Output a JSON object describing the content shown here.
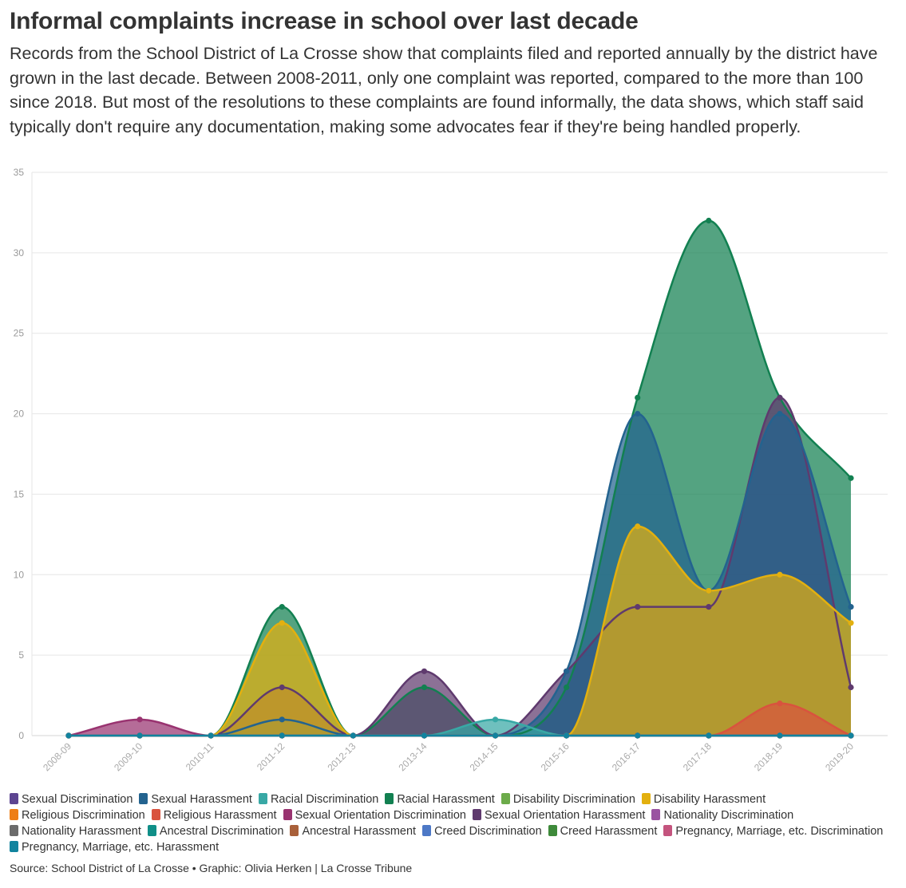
{
  "title": "Informal complaints increase in school over last decade",
  "subtitle": "Records from the School District of La Crosse show that complaints filed and reported annually by the district have grown in the last decade. Between 2008-2011, only one complaint was reported, compared to the more than 100 since 2018. But most of the resolutions to these complaints are found informally, the data shows, which staff said typically don't require any documentation, making some advocates fear if they're being handled properly.",
  "source": "Source: School District of La Crosse • Graphic: Olivia Herken | La Crosse Tribune",
  "chart_data": {
    "type": "area",
    "ylim": [
      0,
      35
    ],
    "yticks": [
      0,
      5,
      10,
      15,
      20,
      25,
      30,
      35
    ],
    "categories": [
      "2008-09",
      "2009-10",
      "2010-11",
      "2011-12",
      "2012-13",
      "2013-14",
      "2014-15",
      "2015-16",
      "2016-17",
      "2017-18",
      "2018-19",
      "2019-20"
    ],
    "legend_position": "bottom",
    "series": [
      {
        "name": "Sexual Discrimination",
        "color": "#5d4591",
        "values": [
          0,
          0,
          0,
          0,
          0,
          0,
          0,
          0,
          0,
          0,
          0,
          0
        ]
      },
      {
        "name": "Sexual Harassment",
        "color": "#23638f",
        "values": [
          0,
          0,
          0,
          1,
          0,
          0,
          0,
          4,
          20,
          9,
          20,
          8
        ]
      },
      {
        "name": "Racial Discrimination",
        "color": "#38a8a5",
        "values": [
          0,
          0,
          0,
          0,
          0,
          0,
          1,
          0,
          0,
          0,
          0,
          0
        ]
      },
      {
        "name": "Racial Harassment",
        "color": "#128051",
        "values": [
          0,
          0,
          0,
          8,
          0,
          3,
          0,
          3,
          21,
          32,
          21,
          16
        ]
      },
      {
        "name": "Disability Discrimination",
        "color": "#6cab4a",
        "values": [
          0,
          0,
          0,
          0,
          0,
          0,
          0,
          0,
          0,
          0,
          0,
          0
        ]
      },
      {
        "name": "Disability Harassment",
        "color": "#e3b00f",
        "values": [
          0,
          0,
          0,
          7,
          0,
          0,
          0,
          0,
          13,
          9,
          10,
          7
        ]
      },
      {
        "name": "Religious Discrimination",
        "color": "#ee7e15",
        "values": [
          0,
          0,
          0,
          0,
          0,
          0,
          0,
          0,
          0,
          0,
          0,
          0
        ]
      },
      {
        "name": "Religious Harassment",
        "color": "#d9533e",
        "values": [
          0,
          0,
          0,
          0,
          0,
          0,
          0,
          0,
          0,
          0,
          2,
          0
        ]
      },
      {
        "name": "Sexual Orientation Discrimination",
        "color": "#993370",
        "values": [
          0,
          1,
          0,
          0,
          0,
          0,
          0,
          0,
          0,
          0,
          0,
          0
        ]
      },
      {
        "name": "Sexual Orientation Harassment",
        "color": "#5f3a6e",
        "values": [
          0,
          0,
          0,
          3,
          0,
          4,
          0,
          4,
          8,
          8,
          21,
          3
        ]
      },
      {
        "name": "Nationality Discrimination",
        "color": "#9a53a1",
        "values": [
          0,
          0,
          0,
          0,
          0,
          0,
          0,
          0,
          0,
          0,
          0,
          0
        ]
      },
      {
        "name": "Nationality Harassment",
        "color": "#6b6b6b",
        "values": [
          0,
          0,
          0,
          0,
          0,
          0,
          0,
          0,
          0,
          0,
          0,
          0
        ]
      },
      {
        "name": "Ancestral Discrimination",
        "color": "#108f88",
        "values": [
          0,
          0,
          0,
          0,
          0,
          0,
          0,
          0,
          0,
          0,
          0,
          0
        ]
      },
      {
        "name": "Ancestral Harassment",
        "color": "#a9603a",
        "values": [
          0,
          0,
          0,
          0,
          0,
          0,
          0,
          0,
          0,
          0,
          0,
          0
        ]
      },
      {
        "name": "Creed Discrimination",
        "color": "#4d78c6",
        "values": [
          0,
          0,
          0,
          0,
          0,
          0,
          0,
          0,
          0,
          0,
          0,
          0
        ]
      },
      {
        "name": "Creed Harassment",
        "color": "#3e8a3a",
        "values": [
          0,
          0,
          0,
          0,
          0,
          0,
          0,
          0,
          0,
          0,
          0,
          0
        ]
      },
      {
        "name": "Pregnancy, Marriage, etc. Discrimination",
        "color": "#c4547e",
        "values": [
          0,
          0,
          0,
          0,
          0,
          0,
          0,
          0,
          0,
          0,
          0,
          0
        ]
      },
      {
        "name": "Pregnancy, Marriage, etc. Harassment",
        "color": "#11839e",
        "values": [
          0,
          0,
          0,
          0,
          0,
          0,
          0,
          0,
          0,
          0,
          0,
          0
        ]
      }
    ]
  }
}
